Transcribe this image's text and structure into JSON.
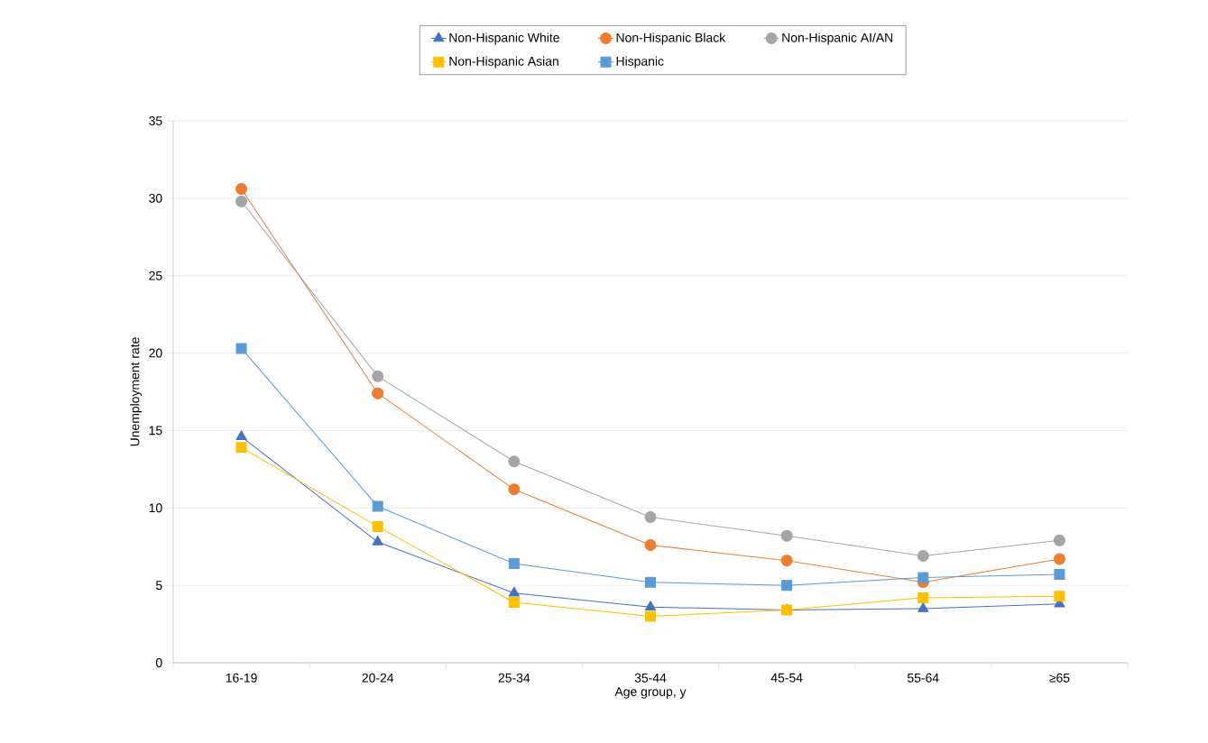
{
  "chart_data": {
    "type": "line",
    "xlabel": "Age group, y",
    "ylabel": "Unemployment rate",
    "categories": [
      "16-19",
      "20-24",
      "25-34",
      "35-44",
      "45-54",
      "55-64",
      "≥65"
    ],
    "series": [
      {
        "name": "Non-Hispanic White",
        "color": "#4472c4",
        "marker": "triangle",
        "values": [
          14.6,
          7.8,
          4.5,
          3.6,
          3.4,
          3.5,
          3.8
        ]
      },
      {
        "name": "Non-Hispanic Black",
        "color": "#ed7d31",
        "marker": "circle",
        "values": [
          30.6,
          17.4,
          11.2,
          7.6,
          6.6,
          5.2,
          6.7
        ]
      },
      {
        "name": "Non-Hispanic AI/AN",
        "color": "#a5a5a5",
        "marker": "circle",
        "values": [
          29.8,
          18.5,
          13.0,
          9.4,
          8.2,
          6.9,
          7.9
        ]
      },
      {
        "name": "Non-Hispanic Asian",
        "color": "#ffc000",
        "marker": "square",
        "values": [
          13.9,
          8.8,
          3.9,
          3.0,
          3.4,
          4.2,
          4.3
        ]
      },
      {
        "name": "Hispanic",
        "color": "#5b9bd5",
        "marker": "square",
        "values": [
          20.3,
          10.1,
          6.4,
          5.2,
          5.0,
          5.5,
          5.7
        ]
      }
    ],
    "ylim": [
      0,
      35
    ],
    "yticks": [
      0,
      5,
      10,
      15,
      20,
      25,
      30,
      35
    ],
    "grid": "y",
    "legend": "top",
    "line_style": "solid"
  }
}
